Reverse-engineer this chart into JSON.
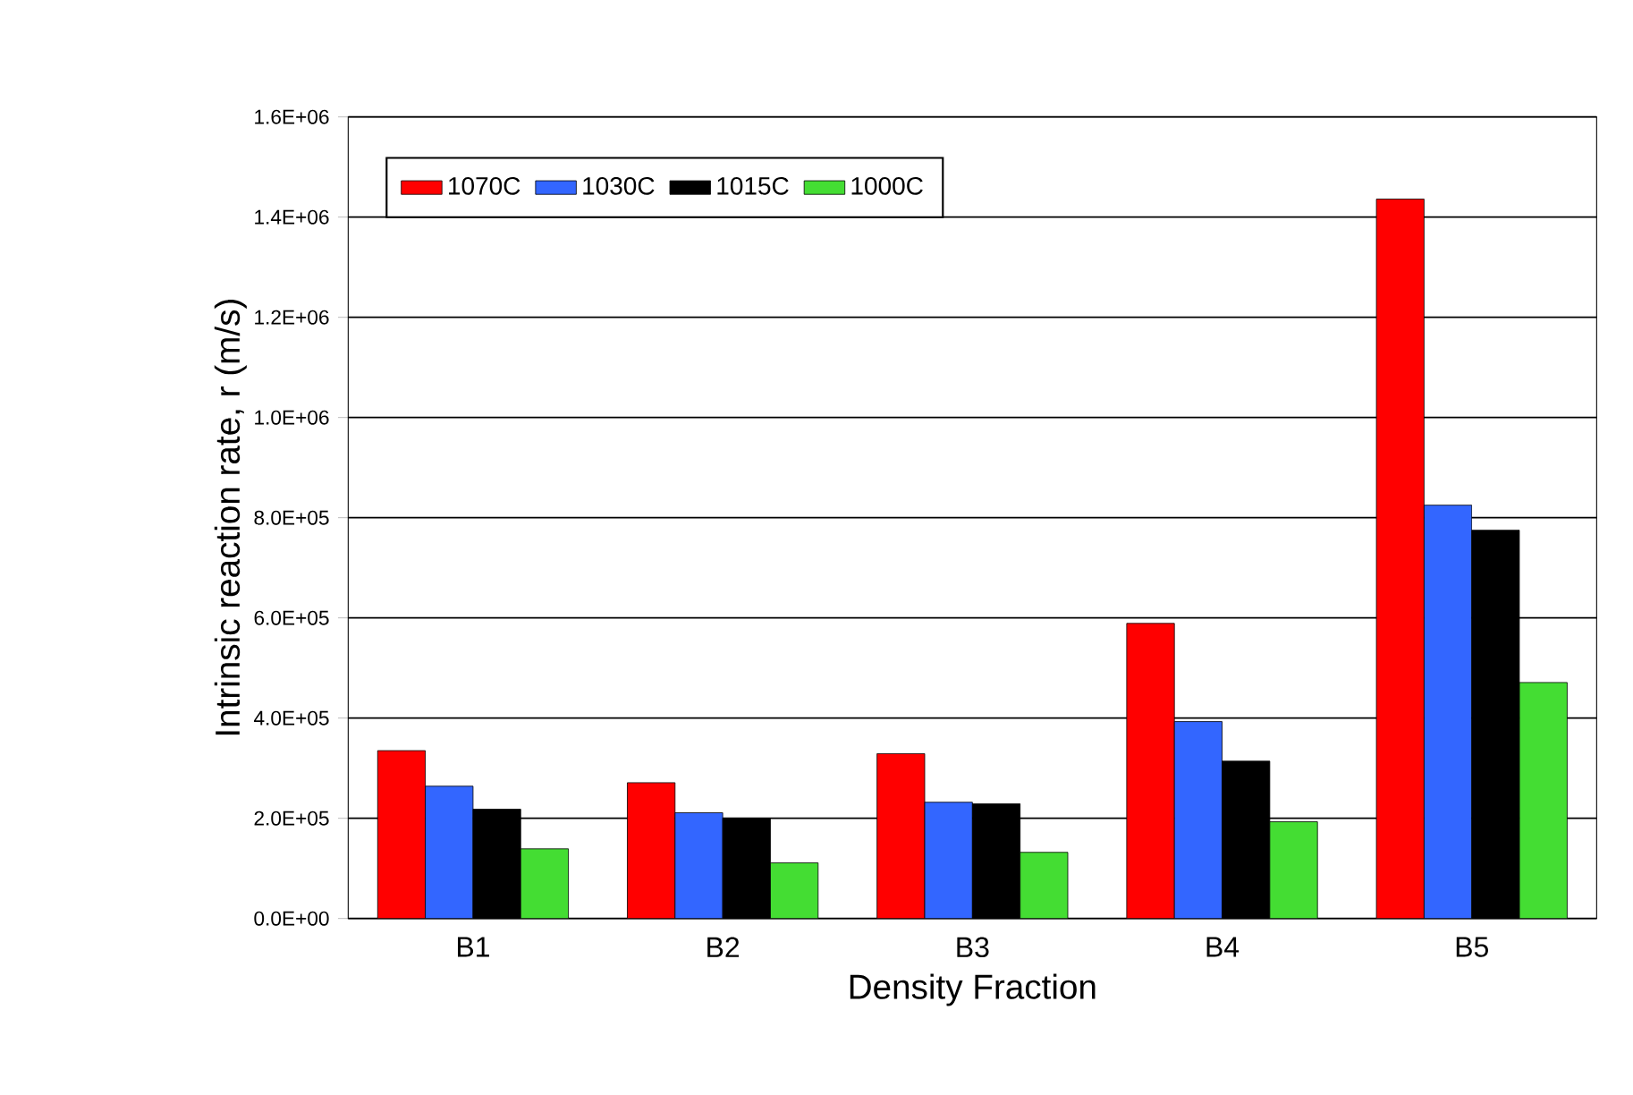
{
  "chart_data": {
    "type": "bar",
    "xlabel": "Density Fraction",
    "ylabel": "Intrinsic reaction rate, r (m/s)",
    "categories": [
      "B1",
      "B2",
      "B3",
      "B4",
      "B5"
    ],
    "series": [
      {
        "name": "1070C",
        "color": "#ff0000",
        "values": [
          335000,
          271000,
          329000,
          589000,
          1436000
        ]
      },
      {
        "name": "1030C",
        "color": "#3366ff",
        "values": [
          264000,
          211000,
          232000,
          393000,
          825000
        ]
      },
      {
        "name": "1015C",
        "color": "#000000",
        "values": [
          218000,
          200000,
          229000,
          314000,
          775000
        ]
      },
      {
        "name": "1000C",
        "color": "#44dd33",
        "values": [
          139000,
          111000,
          132000,
          193000,
          471000
        ]
      }
    ],
    "ylim": [
      0,
      1600000
    ],
    "yticks": [
      {
        "value": 0,
        "label": "0.0E+00"
      },
      {
        "value": 200000,
        "label": "2.0E+05"
      },
      {
        "value": 400000,
        "label": "4.0E+05"
      },
      {
        "value": 600000,
        "label": "6.0E+05"
      },
      {
        "value": 800000,
        "label": "8.0E+05"
      },
      {
        "value": 1000000,
        "label": "1.0E+06"
      },
      {
        "value": 1200000,
        "label": "1.2E+06"
      },
      {
        "value": 1400000,
        "label": "1.4E+06"
      },
      {
        "value": 1600000,
        "label": "1.6E+06"
      }
    ],
    "grid": "y",
    "legend": "top left"
  }
}
